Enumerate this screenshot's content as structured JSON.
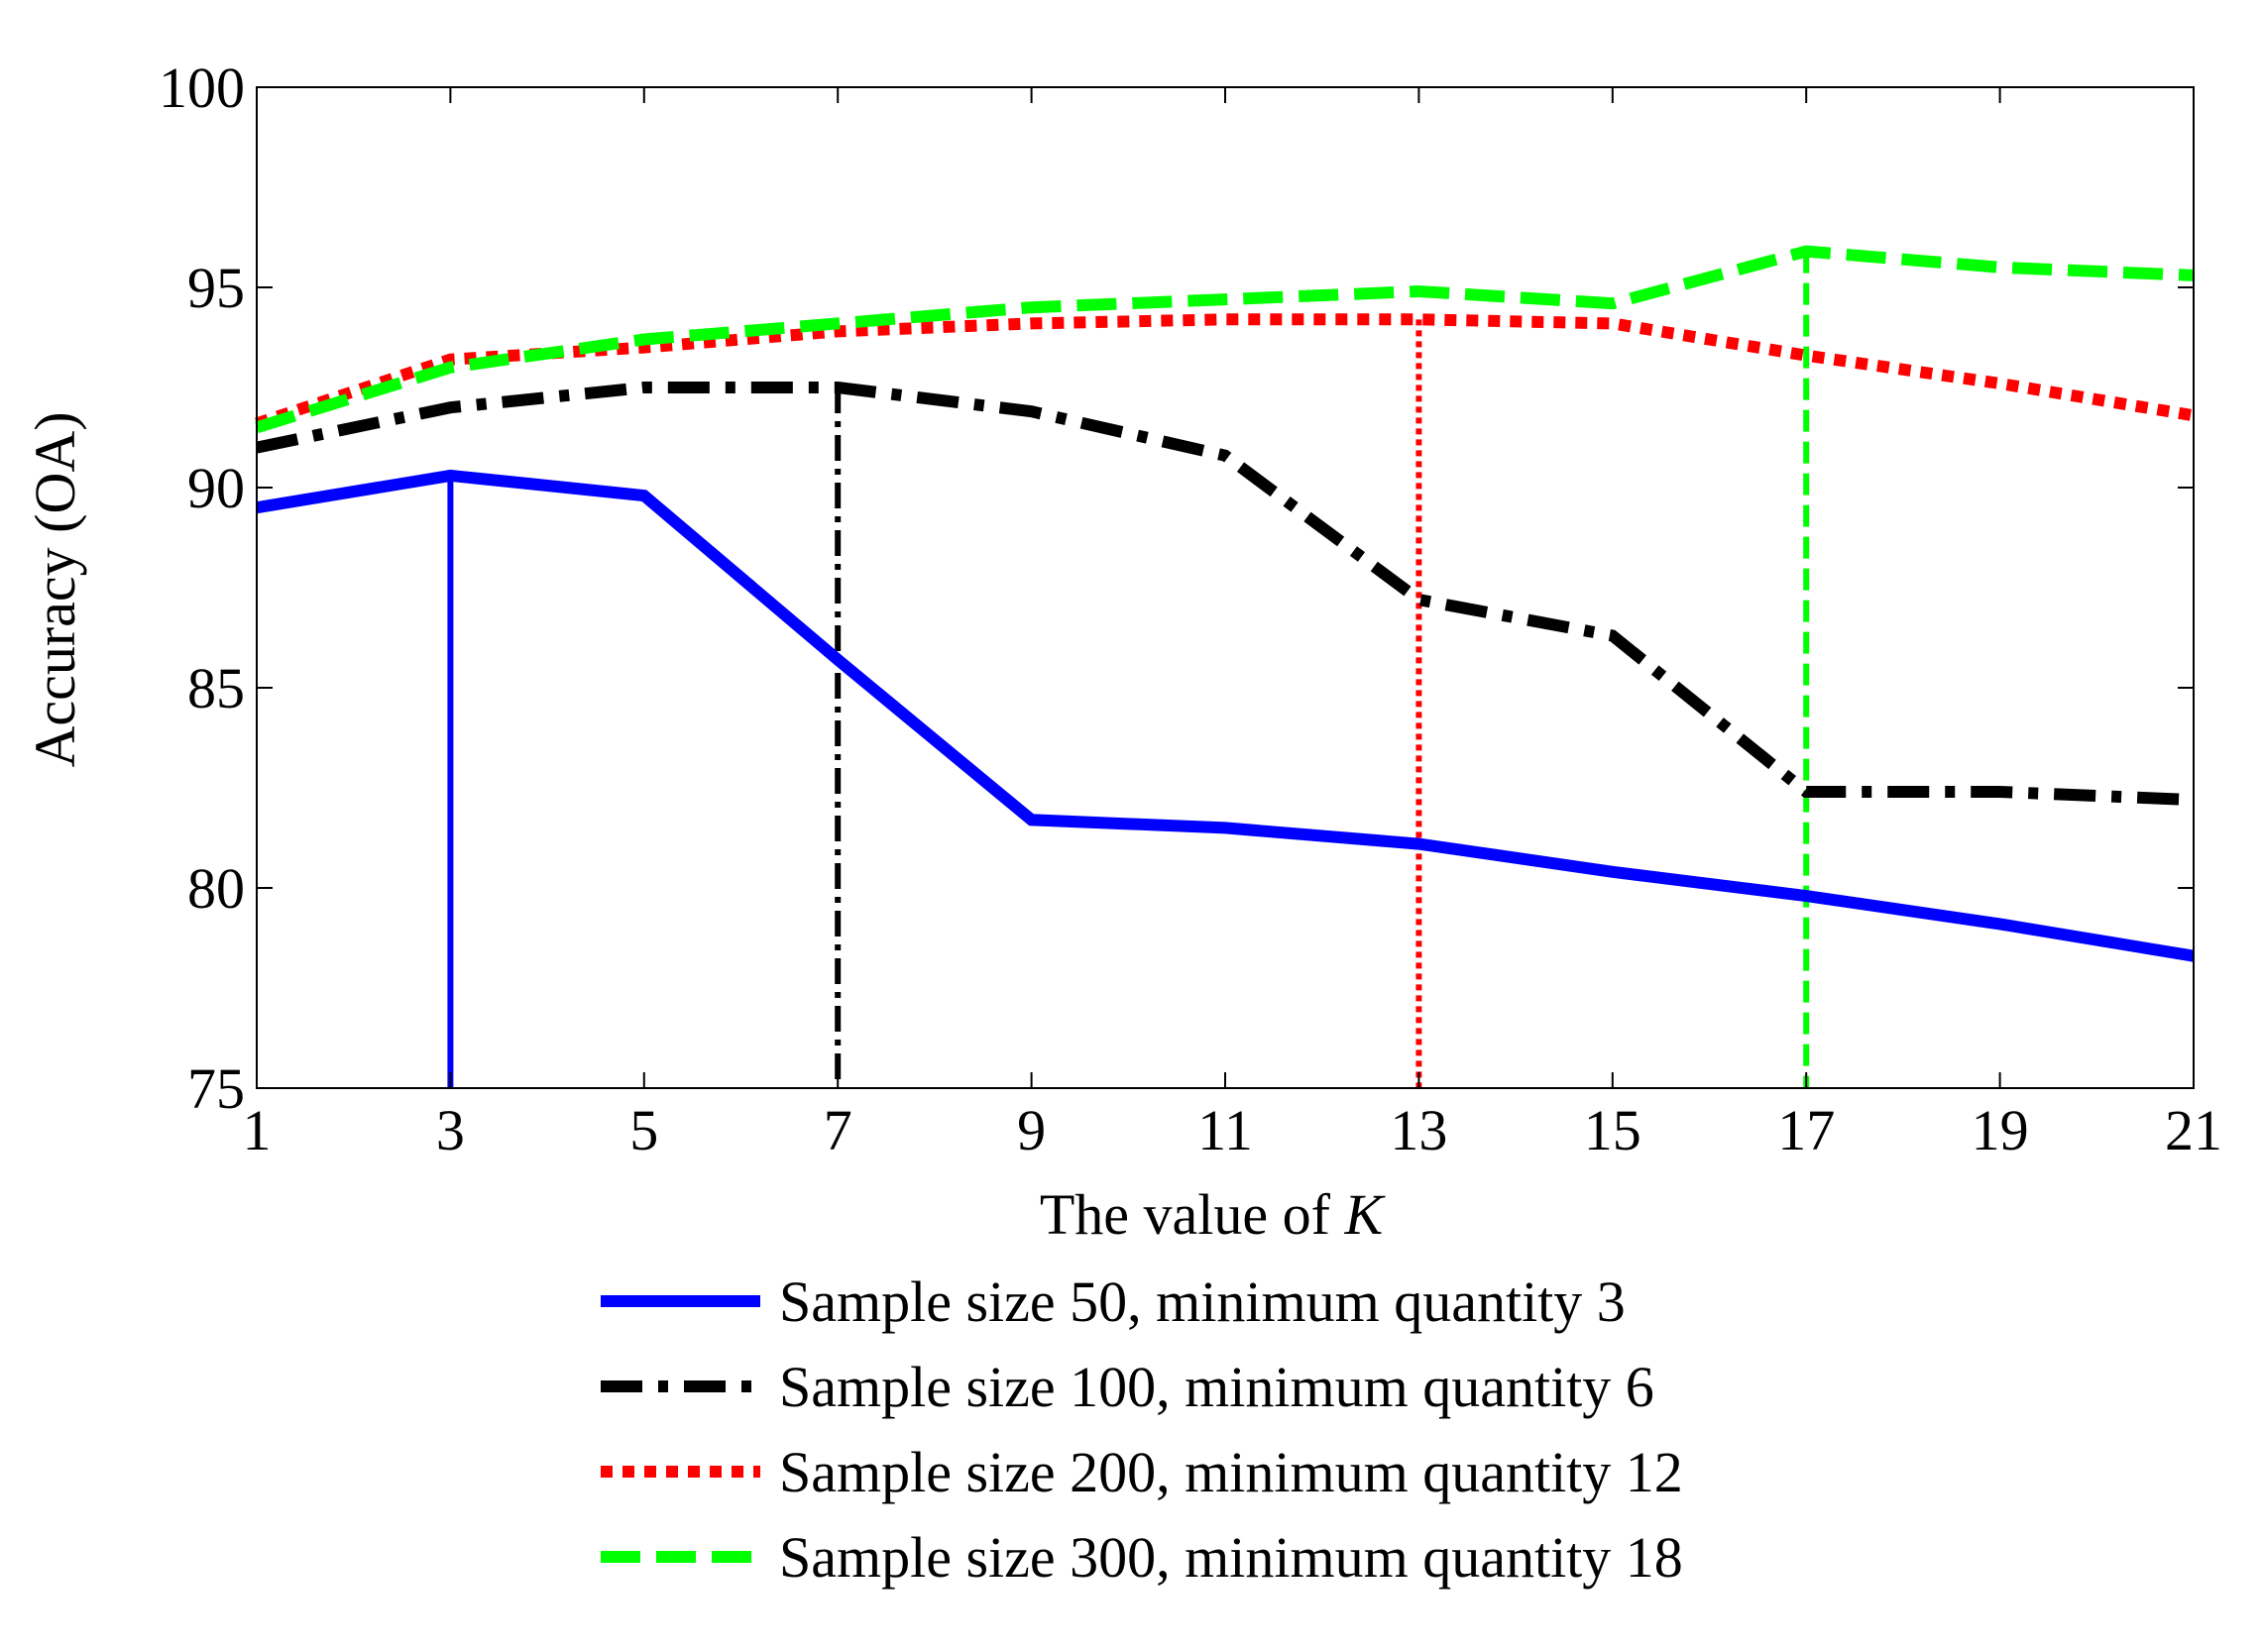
{
  "chart_data": {
    "type": "line",
    "xlabel_prefix": "The value of ",
    "xlabel_var": "K",
    "ylabel": "Accuracy (OA)",
    "x": [
      1,
      3,
      5,
      7,
      9,
      11,
      13,
      15,
      17,
      19,
      21
    ],
    "xticks": [
      "1",
      "3",
      "5",
      "7",
      "9",
      "11",
      "13",
      "15",
      "17",
      "19",
      "21"
    ],
    "yticks": [
      "75",
      "80",
      "85",
      "90",
      "95",
      "100"
    ],
    "xlim": [
      1,
      21
    ],
    "ylim": [
      75,
      100
    ],
    "grid": false,
    "legend_position": "bottom",
    "series": [
      {
        "name": "Sample size 50, minimum quantity 3",
        "color": "#0000ff",
        "style": "solid",
        "values": [
          89.5,
          90.3,
          89.8,
          85.7,
          81.7,
          81.5,
          81.1,
          80.4,
          79.8,
          79.1,
          78.3
        ],
        "vline_x": 3
      },
      {
        "name": "Sample size 100, minimum quantity 6",
        "color": "#000000",
        "style": "dashdot",
        "values": [
          91.0,
          92.0,
          92.5,
          92.5,
          91.9,
          90.8,
          87.2,
          86.3,
          82.4,
          82.4,
          82.2
        ],
        "vline_x": 7
      },
      {
        "name": "Sample size 200, minimum quantity 12",
        "color": "#ff0000",
        "style": "dotted",
        "values": [
          91.6,
          93.2,
          93.5,
          93.9,
          94.1,
          94.2,
          94.2,
          94.1,
          93.3,
          92.6,
          91.8
        ],
        "vline_x": 13
      },
      {
        "name": "Sample size 300, minimum quantity 18",
        "color": "#00ff00",
        "style": "dashed",
        "values": [
          91.5,
          93.0,
          93.7,
          94.1,
          94.5,
          94.7,
          94.9,
          94.6,
          95.9,
          95.5,
          95.3
        ],
        "vline_x": 17
      }
    ]
  }
}
